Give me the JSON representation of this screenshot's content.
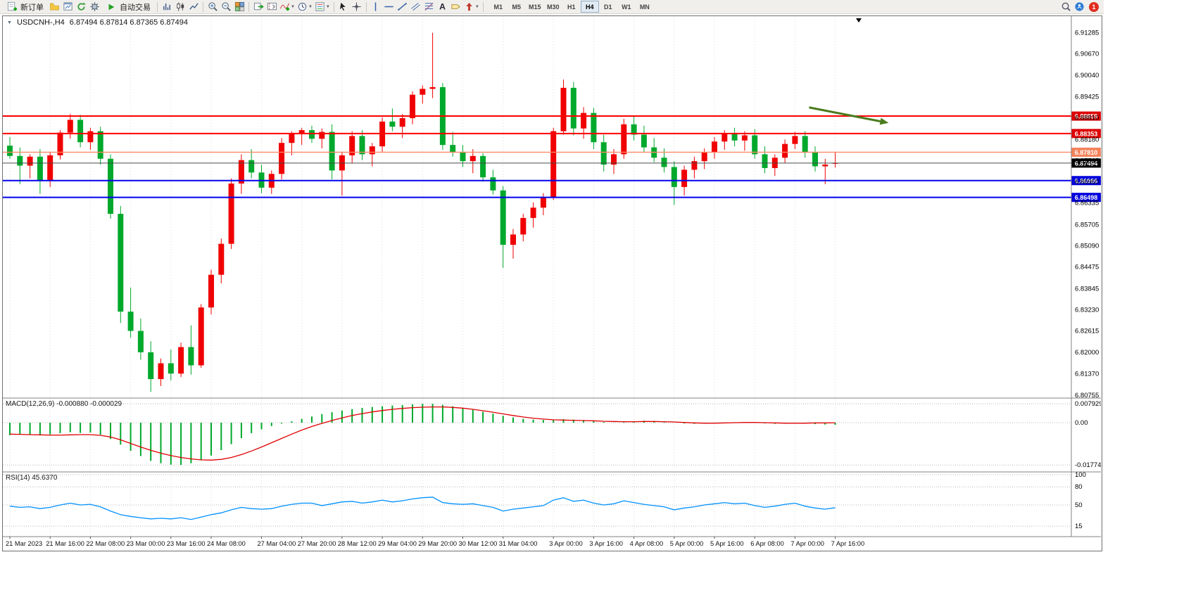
{
  "toolbar": {
    "new_order": "新订单",
    "auto_trading": "自动交易",
    "timeframes": [
      "M1",
      "M5",
      "M15",
      "M30",
      "H1",
      "H4",
      "D1",
      "W1",
      "MN"
    ],
    "active_timeframe": "H4",
    "notification_badge": "1",
    "icon_names": [
      "new-order-icon",
      "profiles-icon",
      "print-preview-icon",
      "refresh-icon",
      "options-icon",
      "play-icon",
      "bar-chart-icon",
      "candlestick-chart-icon",
      "line-chart-icon",
      "zoom-in-icon",
      "zoom-out-icon",
      "tile-windows-icon",
      "auto-scroll-icon",
      "chart-shift-icon",
      "indicators-icon",
      "periods-icon",
      "templates-icon",
      "cursor-icon",
      "crosshair-icon",
      "vertical-line-icon",
      "horizontal-line-icon",
      "trendline-icon",
      "channel-icon",
      "fibonacci-icon",
      "text-icon",
      "label-icon",
      "arrows-icon",
      "search-icon",
      "community-icon"
    ]
  },
  "chart_header": {
    "collapse_arrow": "▼",
    "symbol_period": "USDCNH-,H4",
    "ohlc": "6.87494 6.87814 6.87365 6.87494"
  },
  "levels": [
    {
      "label": "6.88859",
      "price": 6.88859,
      "color": "#ff0000",
      "tag_bg": "#dd0000",
      "width": 2,
      "dashed": false
    },
    {
      "label": "6.88353",
      "price": 6.88353,
      "color": "#ff0000",
      "tag_bg": "#dd0000",
      "width": 2,
      "dashed": false
    },
    {
      "label": "6.87810",
      "price": 6.8781,
      "color": "#ff8866",
      "tag_bg": "#f4825a",
      "width": 1.4,
      "dashed": false
    },
    {
      "label": "6.87494",
      "price": 6.87494,
      "color": "#4a4a4a",
      "tag_bg": "#000000",
      "width": 1,
      "dashed": false
    },
    {
      "label": "6.86986",
      "price": 6.86986,
      "color": "#0000ee",
      "tag_bg": "#0000dd",
      "width": 2,
      "dashed": false
    },
    {
      "label": "6.86498",
      "price": 6.86498,
      "color": "#0000ee",
      "tag_bg": "#0000dd",
      "width": 2,
      "dashed": false
    }
  ],
  "chart_data": [
    {
      "type": "candlestick",
      "title": "USDCNH-,H4",
      "symbol": "USDCNH-",
      "period": "H4",
      "up_color": "#f00000",
      "down_color": "#00a92c",
      "ylim": [
        6.8071,
        6.9172
      ],
      "y_ticks": [
        "6.91285",
        "6.90670",
        "6.90040",
        "6.89425",
        "6.88810",
        "6.88180",
        "6.87565",
        "6.86950",
        "6.86335",
        "6.85705",
        "6.85090",
        "6.84475",
        "6.83845",
        "6.83230",
        "6.82615",
        "6.82000",
        "6.81370",
        "6.80755"
      ],
      "x_ticks": [
        {
          "label": "21 Mar 2023",
          "bar": 0
        },
        {
          "label": "21 Mar 16:00",
          "bar": 4
        },
        {
          "label": "22 Mar 08:00",
          "bar": 8
        },
        {
          "label": "23 Mar 00:00",
          "bar": 12
        },
        {
          "label": "23 Mar 16:00",
          "bar": 16
        },
        {
          "label": "24 Mar 08:00",
          "bar": 20
        },
        {
          "label": "27 Mar 04:00",
          "bar": 25
        },
        {
          "label": "27 Mar 20:00",
          "bar": 29
        },
        {
          "label": "28 Mar 12:00",
          "bar": 33
        },
        {
          "label": "29 Mar 04:00",
          "bar": 37
        },
        {
          "label": "29 Mar 20:00",
          "bar": 41
        },
        {
          "label": "30 Mar 12:00",
          "bar": 45
        },
        {
          "label": "31 Mar 04:00",
          "bar": 49
        },
        {
          "label": "3 Apr 00:00",
          "bar": 54
        },
        {
          "label": "3 Apr 16:00",
          "bar": 58
        },
        {
          "label": "4 Apr 08:00",
          "bar": 62
        },
        {
          "label": "5 Apr 00:00",
          "bar": 66
        },
        {
          "label": "5 Apr 16:00",
          "bar": 70
        },
        {
          "label": "6 Apr 08:00",
          "bar": 74
        },
        {
          "label": "7 Apr 00:00",
          "bar": 78
        },
        {
          "label": "7 Apr 16:00",
          "bar": 82
        }
      ],
      "candles": [
        [
          6.88,
          6.8825,
          6.8762,
          6.877
        ],
        [
          6.877,
          6.8795,
          6.8688,
          6.8742
        ],
        [
          6.8742,
          6.8775,
          6.8705,
          6.8768
        ],
        [
          6.8768,
          6.879,
          6.866,
          6.87
        ],
        [
          6.87,
          6.878,
          6.868,
          6.8772
        ],
        [
          6.8772,
          6.8845,
          6.876,
          6.8838
        ],
        [
          6.8838,
          6.8892,
          6.882,
          6.8875
        ],
        [
          6.8875,
          6.889,
          6.8795,
          6.881
        ],
        [
          6.881,
          6.8852,
          6.8788,
          6.8842
        ],
        [
          6.8842,
          6.8855,
          6.8745,
          6.8762
        ],
        [
          6.8762,
          6.8775,
          6.8588,
          6.8602
        ],
        [
          6.8602,
          6.8625,
          6.8285,
          6.8318
        ],
        [
          6.8318,
          6.8388,
          6.8242,
          6.8262
        ],
        [
          6.8262,
          6.8298,
          6.8178,
          6.82
        ],
        [
          6.82,
          6.8232,
          6.8085,
          6.8122
        ],
        [
          6.8122,
          6.8182,
          6.8102,
          6.8168
        ],
        [
          6.8168,
          6.8208,
          6.8118,
          6.8138
        ],
        [
          6.8138,
          6.8228,
          6.8128,
          6.8215
        ],
        [
          6.8215,
          6.8278,
          6.8135,
          6.8162
        ],
        [
          6.8162,
          6.834,
          6.8155,
          6.833
        ],
        [
          6.833,
          6.844,
          6.831,
          6.8425
        ],
        [
          6.8425,
          6.853,
          6.84,
          6.8515
        ],
        [
          6.8515,
          6.8705,
          6.85,
          6.869
        ],
        [
          6.869,
          6.8775,
          6.866,
          6.8758
        ],
        [
          6.8758,
          6.879,
          6.8705,
          6.8722
        ],
        [
          6.8722,
          6.8745,
          6.8662,
          6.8678
        ],
        [
          6.8678,
          6.8728,
          6.866,
          6.8718
        ],
        [
          6.8718,
          6.8822,
          6.8702,
          6.8808
        ],
        [
          6.8808,
          6.8842,
          6.8772,
          6.8835
        ],
        [
          6.8835,
          6.8852,
          6.8802,
          6.8845
        ],
        [
          6.8845,
          6.8858,
          6.8808,
          6.882
        ],
        [
          6.882,
          6.885,
          6.8792,
          6.884
        ],
        [
          6.884,
          6.8862,
          6.8702,
          6.8728
        ],
        [
          6.8728,
          6.8782,
          6.8655,
          6.8772
        ],
        [
          6.8772,
          6.8842,
          6.8748,
          6.8828
        ],
        [
          6.8828,
          6.8845,
          6.8758,
          6.8775
        ],
        [
          6.8775,
          6.8808,
          6.874,
          6.8798
        ],
        [
          6.8798,
          6.8882,
          6.8782,
          6.887
        ],
        [
          6.887,
          6.8908,
          6.8842,
          6.8855
        ],
        [
          6.8855,
          6.8892,
          6.8822,
          6.888
        ],
        [
          6.888,
          6.8958,
          6.8862,
          6.8948
        ],
        [
          6.8948,
          6.8975,
          6.8922,
          6.8965
        ],
        [
          6.8965,
          6.9128,
          6.8938,
          6.897
        ],
        [
          6.897,
          6.8982,
          6.8788,
          6.8802
        ],
        [
          6.8802,
          6.884,
          6.8768,
          6.878
        ],
        [
          6.878,
          6.8802,
          6.8738,
          6.8755
        ],
        [
          6.8755,
          6.879,
          6.872,
          6.877
        ],
        [
          6.877,
          6.8778,
          6.8695,
          6.8708
        ],
        [
          6.8708,
          6.873,
          6.8658,
          6.867
        ],
        [
          6.867,
          6.8682,
          6.8445,
          6.8512
        ],
        [
          6.8512,
          6.8558,
          6.8472,
          6.8542
        ],
        [
          6.8542,
          6.8602,
          6.8522,
          6.859
        ],
        [
          6.859,
          6.8635,
          6.8562,
          6.862
        ],
        [
          6.862,
          6.8662,
          6.8598,
          6.865
        ],
        [
          6.865,
          6.8852,
          6.8642,
          6.8842
        ],
        [
          6.8842,
          6.8992,
          6.8832,
          6.8968
        ],
        [
          6.8968,
          6.8985,
          6.883,
          6.885
        ],
        [
          6.885,
          6.8912,
          6.882,
          6.8895
        ],
        [
          6.8895,
          6.891,
          6.879,
          6.881
        ],
        [
          6.881,
          6.8832,
          6.8725,
          6.8745
        ],
        [
          6.8745,
          6.879,
          6.8718,
          6.8775
        ],
        [
          6.8775,
          6.8878,
          6.8762,
          6.8862
        ],
        [
          6.8862,
          6.8888,
          6.8815,
          6.8832
        ],
        [
          6.8832,
          6.8858,
          6.8782,
          6.8795
        ],
        [
          6.8795,
          6.8822,
          6.8752,
          6.8765
        ],
        [
          6.8765,
          6.8792,
          6.8722,
          6.8738
        ],
        [
          6.8738,
          6.8755,
          6.8628,
          6.868
        ],
        [
          6.868,
          6.8742,
          6.8655,
          6.873
        ],
        [
          6.873,
          6.8768,
          6.8705,
          6.8755
        ],
        [
          6.8755,
          6.8792,
          6.8732,
          6.878
        ],
        [
          6.878,
          6.8825,
          6.8762,
          6.8812
        ],
        [
          6.8812,
          6.8845,
          6.8788,
          6.8835
        ],
        [
          6.8835,
          6.8852,
          6.8798,
          6.8815
        ],
        [
          6.8815,
          6.8842,
          6.8785,
          6.883
        ],
        [
          6.883,
          6.8848,
          6.8762,
          6.8775
        ],
        [
          6.8775,
          6.8798,
          6.872,
          6.8735
        ],
        [
          6.8735,
          6.8775,
          6.8712,
          6.8765
        ],
        [
          6.8765,
          6.8818,
          6.875,
          6.8805
        ],
        [
          6.8805,
          6.884,
          6.879,
          6.8828
        ],
        [
          6.8828,
          6.8842,
          6.8765,
          6.878
        ],
        [
          6.878,
          6.8798,
          6.8725,
          6.874
        ],
        [
          6.874,
          6.8762,
          6.8688,
          6.8745
        ],
        [
          6.87494,
          6.87814,
          6.87365,
          6.87494
        ]
      ],
      "arrow": {
        "from": {
          "bar": 79.4,
          "price": 6.8911
        },
        "to": {
          "bar": 87.3,
          "price": 6.8866
        },
        "color": "#4b7b1e"
      }
    },
    {
      "type": "bar",
      "name": "MACD(12,26,9)",
      "current_values": "-0.000880 -0.000029",
      "ylim": [
        -0.017743,
        0.007929
      ],
      "y_ticks": [
        "0.007929",
        "0.00",
        "-0.017743"
      ],
      "histogram_color": "#00a92c",
      "signal_color": "#e00000",
      "histogram": [
        -0.0052,
        -0.005,
        -0.0049,
        -0.0052,
        -0.0049,
        -0.0044,
        -0.004,
        -0.0043,
        -0.0041,
        -0.005,
        -0.0068,
        -0.0092,
        -0.0118,
        -0.014,
        -0.016,
        -0.017,
        -0.0176,
        -0.0177,
        -0.017,
        -0.0157,
        -0.0138,
        -0.0115,
        -0.009,
        -0.0065,
        -0.0044,
        -0.0028,
        -0.0014,
        -0.0004,
        0.0006,
        0.0016,
        0.0026,
        0.0036,
        0.0044,
        0.0051,
        0.0057,
        0.0062,
        0.0066,
        0.0069,
        0.0072,
        0.0074,
        0.0077,
        0.0079,
        0.0079,
        0.0075,
        0.0069,
        0.0062,
        0.0054,
        0.0046,
        0.0038,
        0.0029,
        0.0022,
        0.0016,
        0.0013,
        0.0011,
        0.0013,
        0.0015,
        0.0013,
        0.001,
        0.0006,
        0.0003,
        0.0001,
        0.0003,
        0.0006,
        0.0008,
        0.0007,
        0.0004,
        0.0,
        -0.0003,
        -0.0005,
        -0.0004,
        -0.0002,
        0.0,
        0.0002,
        0.0002,
        0.0,
        -0.0003,
        -0.0005,
        -0.0004,
        -0.0003,
        -0.0004,
        -0.0006,
        -0.0008,
        -0.00088
      ],
      "signal_line": [
        -0.0048,
        -0.0049,
        -0.005,
        -0.0051,
        -0.0052,
        -0.0052,
        -0.0051,
        -0.005,
        -0.005,
        -0.0053,
        -0.006,
        -0.0072,
        -0.0087,
        -0.0102,
        -0.0116,
        -0.0128,
        -0.0138,
        -0.0146,
        -0.0152,
        -0.0156,
        -0.0157,
        -0.0154,
        -0.0146,
        -0.0134,
        -0.0119,
        -0.0102,
        -0.0084,
        -0.0066,
        -0.0048,
        -0.0031,
        -0.0016,
        -0.0003,
        0.0009,
        0.002,
        0.003,
        0.0038,
        0.0045,
        0.0051,
        0.0056,
        0.006,
        0.0063,
        0.0065,
        0.0066,
        0.0066,
        0.0064,
        0.0061,
        0.0056,
        0.005,
        0.0044,
        0.0037,
        0.003,
        0.0024,
        0.0019,
        0.0015,
        0.0012,
        0.0011,
        0.001,
        0.0009,
        0.0008,
        0.0006,
        0.0005,
        0.0004,
        0.0004,
        0.0005,
        0.0005,
        0.0004,
        0.0003,
        0.0001,
        -0.0001,
        -0.0002,
        -0.0002,
        -0.0001,
        0.0,
        0.0001,
        0.0001,
        0.0,
        -0.0001,
        -0.0002,
        -0.0002,
        -0.0002,
        -0.0001,
        -0.0001,
        -2.9e-05
      ]
    },
    {
      "type": "line",
      "name": "RSI(14)",
      "current_value": "45.6370",
      "ylim": [
        0,
        100
      ],
      "levels": [
        80,
        50,
        15
      ],
      "y_ticks": [
        "100",
        "80",
        "50",
        "15"
      ],
      "line_color": "#0091ff",
      "values": [
        48,
        46,
        47,
        44,
        46,
        50,
        53,
        50,
        51,
        47,
        40,
        34,
        31,
        29,
        27,
        28,
        27,
        29,
        26,
        30,
        34,
        37,
        42,
        46,
        44,
        43,
        44,
        48,
        51,
        53,
        53,
        49,
        52,
        55,
        56,
        53,
        55,
        58,
        55,
        57,
        60,
        62,
        63,
        54,
        52,
        51,
        52,
        49,
        46,
        40,
        43,
        45,
        47,
        49,
        58,
        62,
        56,
        58,
        53,
        50,
        52,
        57,
        54,
        51,
        49,
        47,
        42,
        45,
        47,
        50,
        52,
        54,
        52,
        53,
        49,
        46,
        48,
        51,
        53,
        48,
        45,
        43,
        45.637
      ]
    }
  ]
}
